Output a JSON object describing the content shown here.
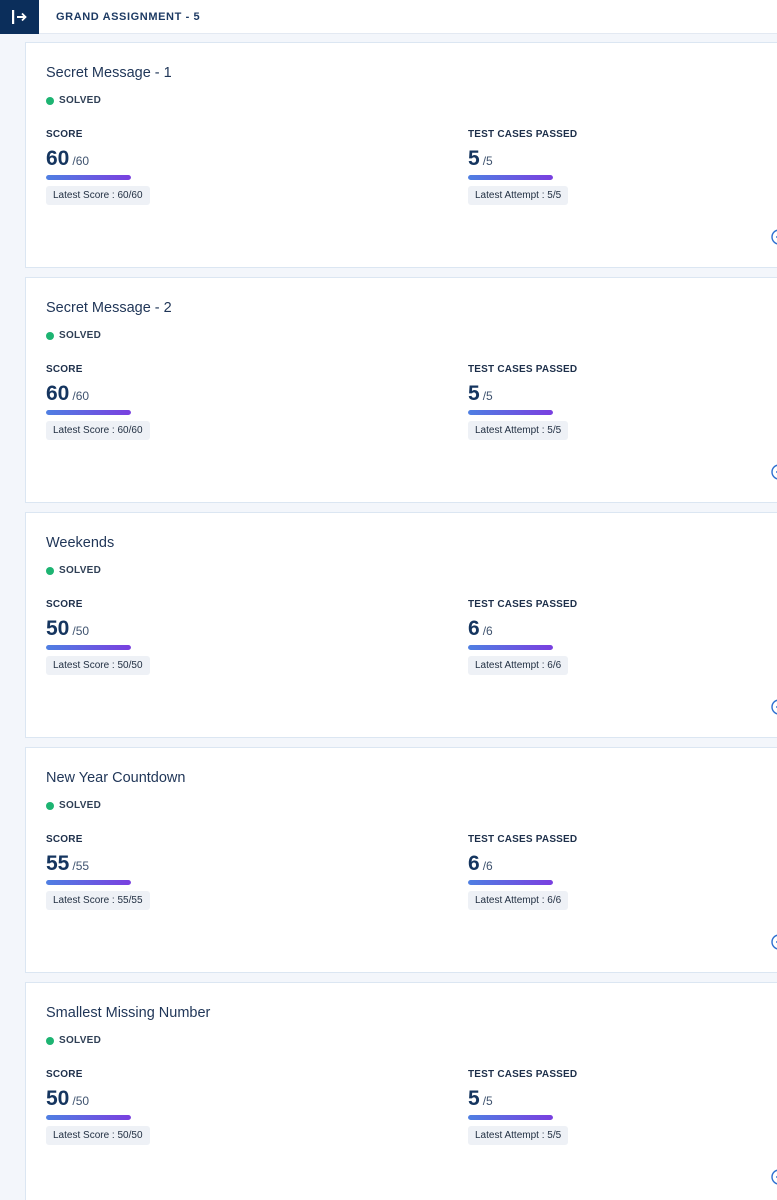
{
  "header": {
    "title": "GRAND ASSIGNMENT - 5",
    "toggle_icon": "sidebar-expand-icon"
  },
  "colors": {
    "header_button_bg": "#0b2e5b",
    "solved_dot": "#1db472",
    "progress_start": "#4f7fe2",
    "progress_end": "#7a3fe0"
  },
  "labels": {
    "score": "SCORE",
    "tests": "TEST CASES PASSED",
    "latest_score_prefix": "Latest Score : ",
    "latest_attempt_prefix": "Latest Attempt : "
  },
  "questions": [
    {
      "title": "Secret Message - 1",
      "status": "SOLVED",
      "score": "60",
      "score_total": "/60",
      "tests": "5",
      "tests_total": "/5",
      "latest_score": "Latest Score : 60/60",
      "latest_attempt": "Latest Attempt : 5/5",
      "score_fraction": 1.0,
      "tests_fraction": 1.0
    },
    {
      "title": "Secret Message - 2",
      "status": "SOLVED",
      "score": "60",
      "score_total": "/60",
      "tests": "5",
      "tests_total": "/5",
      "latest_score": "Latest Score : 60/60",
      "latest_attempt": "Latest Attempt : 5/5",
      "score_fraction": 1.0,
      "tests_fraction": 1.0
    },
    {
      "title": "Weekends",
      "status": "SOLVED",
      "score": "50",
      "score_total": "/50",
      "tests": "6",
      "tests_total": "/6",
      "latest_score": "Latest Score : 50/50",
      "latest_attempt": "Latest Attempt : 6/6",
      "score_fraction": 1.0,
      "tests_fraction": 1.0
    },
    {
      "title": "New Year Countdown",
      "status": "SOLVED",
      "score": "55",
      "score_total": "/55",
      "tests": "6",
      "tests_total": "/6",
      "latest_score": "Latest Score : 55/55",
      "latest_attempt": "Latest Attempt : 6/6",
      "score_fraction": 1.0,
      "tests_fraction": 1.0
    },
    {
      "title": "Smallest Missing Number",
      "status": "SOLVED",
      "score": "50",
      "score_total": "/50",
      "tests": "5",
      "tests_total": "/5",
      "latest_score": "Latest Score : 50/50",
      "latest_attempt": "Latest Attempt : 5/5",
      "score_fraction": 1.0,
      "tests_fraction": 1.0
    }
  ]
}
